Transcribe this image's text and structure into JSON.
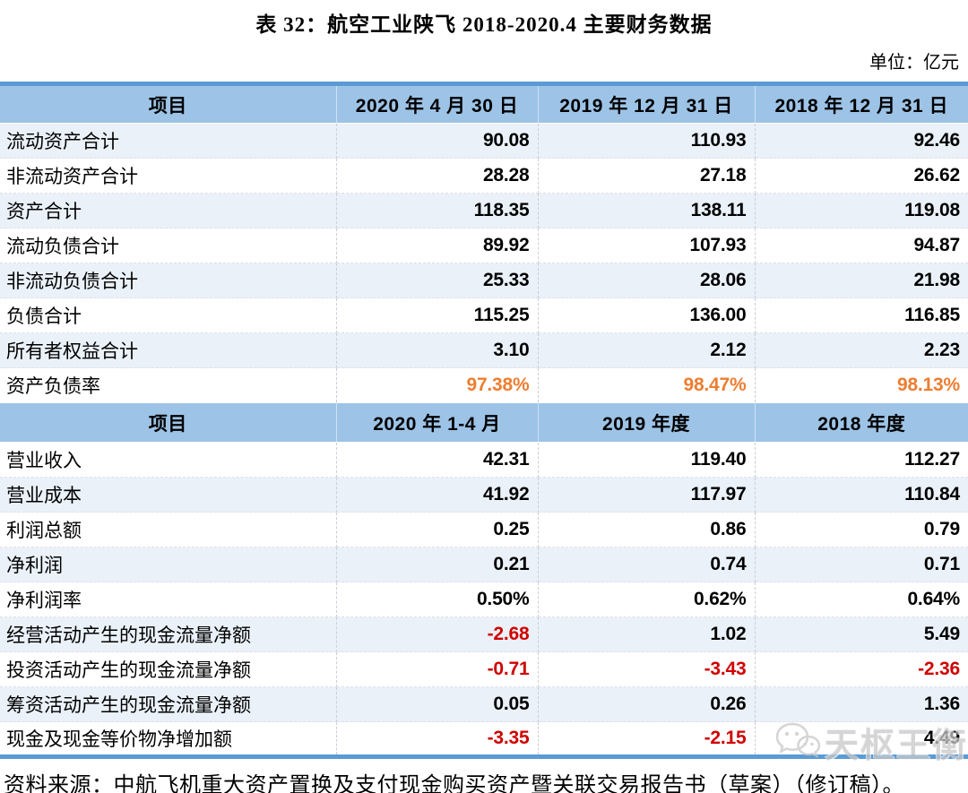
{
  "title": "表 32：航空工业陕飞 2018-2020.4 主要财务数据",
  "unit_label": "单位：亿元",
  "table": {
    "sections": [
      {
        "header": [
          "项目",
          "2020 年 4 月 30 日",
          "2019 年 12 月 31 日",
          "2018 年 12 月 31 日"
        ],
        "rows": [
          {
            "label": "流动资产合计",
            "values": [
              "90.08",
              "110.93",
              "92.46"
            ]
          },
          {
            "label": "非流动资产合计",
            "values": [
              "28.28",
              "27.18",
              "26.62"
            ]
          },
          {
            "label": "资产合计",
            "values": [
              "118.35",
              "138.11",
              "119.08"
            ]
          },
          {
            "label": "流动负债合计",
            "values": [
              "89.92",
              "107.93",
              "94.87"
            ]
          },
          {
            "label": "非流动负债合计",
            "values": [
              "25.33",
              "28.06",
              "21.98"
            ]
          },
          {
            "label": "负债合计",
            "values": [
              "115.25",
              "136.00",
              "116.85"
            ]
          },
          {
            "label": "所有者权益合计",
            "values": [
              "3.10",
              "2.12",
              "2.23"
            ]
          },
          {
            "label": "资产负债率",
            "values": [
              "97.38%",
              "98.47%",
              "98.13%"
            ],
            "value_styles": [
              "orange",
              "orange",
              "orange"
            ]
          }
        ]
      },
      {
        "header": [
          "项目",
          "2020 年 1-4 月",
          "2019 年度",
          "2018 年度"
        ],
        "rows": [
          {
            "label": "营业收入",
            "values": [
              "42.31",
              "119.40",
              "112.27"
            ]
          },
          {
            "label": "营业成本",
            "values": [
              "41.92",
              "117.97",
              "110.84"
            ]
          },
          {
            "label": "利润总额",
            "values": [
              "0.25",
              "0.86",
              "0.79"
            ]
          },
          {
            "label": "净利润",
            "values": [
              "0.21",
              "0.74",
              "0.71"
            ]
          },
          {
            "label": "净利润率",
            "values": [
              "0.50%",
              "0.62%",
              "0.64%"
            ]
          },
          {
            "label": "经营活动产生的现金流量净额",
            "values": [
              "-2.68",
              "1.02",
              "5.49"
            ],
            "value_styles": [
              "red",
              "",
              ""
            ]
          },
          {
            "label": "投资活动产生的现金流量净额",
            "values": [
              "-0.71",
              "-3.43",
              "-2.36"
            ],
            "value_styles": [
              "red",
              "red",
              "red"
            ]
          },
          {
            "label": "筹资活动产生的现金流量净额",
            "values": [
              "0.05",
              "0.26",
              "1.36"
            ]
          },
          {
            "label": "现金及现金等价物净增加额",
            "values": [
              "-3.35",
              "-2.15",
              "4.49"
            ],
            "value_styles": [
              "red",
              "red",
              ""
            ]
          }
        ]
      }
    ]
  },
  "footer": "资料来源：中航飞机重大资产置换及支付现金购买资产暨关联交易报告书（草案）（修订稿）。",
  "watermark": {
    "icon": "wechat-icon",
    "text": "天枢王衡"
  },
  "colors": {
    "header_bg": "#9DC3E6",
    "thick_border": "#5B9BD5",
    "stripe_bg": "#EAF1F8",
    "highlight_orange": "#ED7D31",
    "negative_red": "#D00000"
  }
}
